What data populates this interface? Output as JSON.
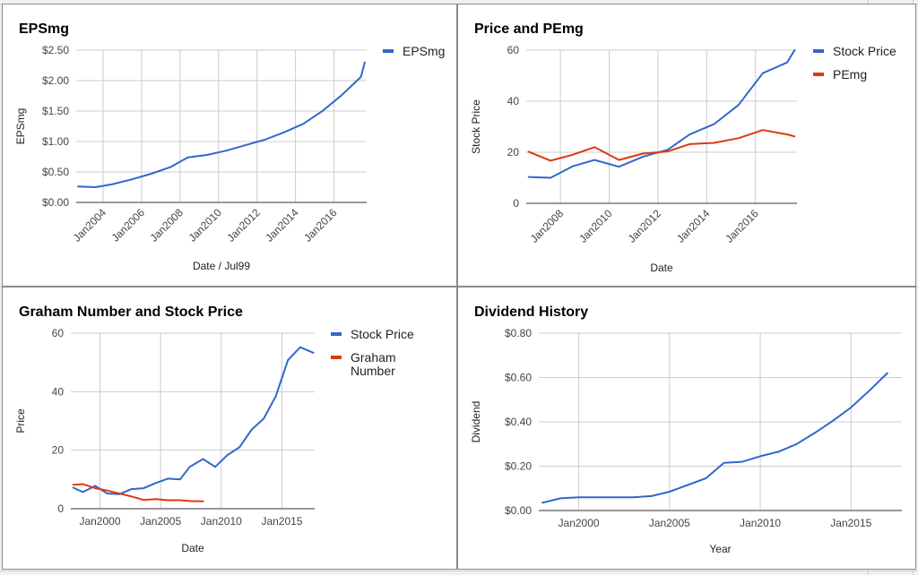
{
  "colors": {
    "blue": "#3366cc",
    "red": "#dc3912",
    "grid": "#cccccc",
    "baseline": "#333333"
  },
  "chart_data": [
    {
      "id": "eps",
      "type": "line",
      "title": "EPSmg",
      "xlabel": "Date / Jul99",
      "ylabel": "EPSmg",
      "x_ticks": [
        "Jan2004",
        "Jan2006",
        "Jan2008",
        "Jan2010",
        "Jan2012",
        "Jan2014",
        "Jan2016"
      ],
      "y_ticks": [
        "$0.00",
        "$0.50",
        "$1.00",
        "$1.50",
        "$2.00",
        "$2.50"
      ],
      "xlim": [
        2002.6,
        2017.7
      ],
      "ylim": [
        0,
        2.5
      ],
      "legend": "right",
      "series": [
        {
          "name": "EPSmg",
          "color": "#3366cc",
          "x": [
            2002.7,
            2003.6,
            2004.5,
            2005.5,
            2006.5,
            2007.5,
            2008.4,
            2009.4,
            2010.4,
            2011.4,
            2012.4,
            2013.4,
            2014.4,
            2015.4,
            2016.4,
            2017.4,
            2017.6
          ],
          "y": [
            0.26,
            0.25,
            0.3,
            0.38,
            0.47,
            0.58,
            0.74,
            0.78,
            0.85,
            0.94,
            1.03,
            1.15,
            1.29,
            1.5,
            1.76,
            2.06,
            2.3
          ]
        }
      ]
    },
    {
      "id": "pe",
      "type": "line",
      "title": "Price and PEmg",
      "xlabel": "Date",
      "ylabel": "Stock Price",
      "x_ticks": [
        "Jan2008",
        "Jan2010",
        "Jan2012",
        "Jan2014",
        "Jan2016"
      ],
      "y_ticks": [
        "0",
        "20",
        "40",
        "60"
      ],
      "xlim": [
        2006.6,
        2017.7
      ],
      "ylim": [
        0,
        60
      ],
      "legend": "right",
      "series": [
        {
          "name": "Stock Price",
          "color": "#3366cc",
          "x": [
            2006.7,
            2007.6,
            2008.5,
            2009.4,
            2010.4,
            2011.4,
            2012.4,
            2013.3,
            2014.3,
            2015.3,
            2016.3,
            2017.3,
            2017.6
          ],
          "y": [
            10.3,
            10.0,
            14.5,
            17.0,
            14.3,
            18.3,
            21.0,
            27.0,
            31.0,
            38.5,
            51.0,
            55.2,
            60.0
          ]
        },
        {
          "name": "PEmg",
          "color": "#dc3912",
          "x": [
            2006.7,
            2007.6,
            2008.5,
            2009.4,
            2010.4,
            2011.4,
            2012.4,
            2013.3,
            2014.3,
            2015.3,
            2016.3,
            2017.3,
            2017.6
          ],
          "y": [
            20.2,
            16.7,
            19.0,
            22.0,
            17.0,
            19.5,
            20.3,
            23.2,
            23.7,
            25.5,
            28.7,
            27.0,
            26.2
          ]
        }
      ]
    },
    {
      "id": "graham",
      "type": "line",
      "title": "Graham Number and Stock Price",
      "xlabel": "Date",
      "ylabel": "Price",
      "x_ticks": [
        "Jan2000",
        "Jan2005",
        "Jan2010",
        "Jan2015"
      ],
      "y_ticks": [
        "0",
        "20",
        "40",
        "60"
      ],
      "xlim": [
        1997.6,
        2017.7
      ],
      "ylim": [
        0,
        60
      ],
      "legend": "right",
      "series": [
        {
          "name": "Stock Price",
          "color": "#3366cc",
          "x": [
            1997.8,
            1998.6,
            1999.6,
            2000.6,
            2001.6,
            2002.6,
            2003.6,
            2004.6,
            2005.6,
            2006.6,
            2007.4,
            2008.5,
            2009.5,
            2010.5,
            2011.5,
            2012.5,
            2013.5,
            2014.5,
            2015.5,
            2016.5,
            2017.6
          ],
          "y": [
            7.2,
            5.7,
            7.8,
            5.2,
            5.0,
            6.7,
            7.0,
            8.8,
            10.3,
            10.0,
            14.3,
            17.0,
            14.3,
            18.3,
            21.0,
            27.0,
            30.8,
            38.5,
            50.8,
            55.2,
            53.3
          ]
        },
        {
          "name": "Graham Number",
          "color": "#dc3912",
          "x": [
            1997.8,
            1998.6,
            1999.6,
            2000.6,
            2001.6,
            2002.6,
            2003.6,
            2004.6,
            2005.6,
            2006.6,
            2007.5,
            2008.5
          ],
          "y": [
            8.2,
            8.4,
            7.0,
            6.2,
            5.2,
            4.2,
            3.0,
            3.3,
            2.9,
            2.9,
            2.6,
            2.5
          ]
        }
      ]
    },
    {
      "id": "div",
      "type": "line",
      "title": "Dividend History",
      "xlabel": "Year",
      "ylabel": "Dividend",
      "x_ticks": [
        "Jan2000",
        "Jan2005",
        "Jan2010",
        "Jan2015"
      ],
      "y_ticks": [
        "$0.00",
        "$0.20",
        "$0.40",
        "$0.60",
        "$0.80"
      ],
      "xlim": [
        1997.8,
        2017.8
      ],
      "ylim": [
        0,
        0.8
      ],
      "legend": "none",
      "series": [
        {
          "name": "",
          "color": "#3366cc",
          "x": [
            1998,
            1999,
            2000,
            2001,
            2002,
            2003,
            2004,
            2005,
            2006,
            2007,
            2008,
            2009,
            2010,
            2011,
            2012,
            2013,
            2014,
            2015,
            2016,
            2017
          ],
          "y": [
            0.035,
            0.055,
            0.06,
            0.06,
            0.06,
            0.06,
            0.065,
            0.085,
            0.115,
            0.145,
            0.215,
            0.22,
            0.245,
            0.265,
            0.3,
            0.35,
            0.405,
            0.465,
            0.54,
            0.62
          ]
        }
      ]
    }
  ]
}
